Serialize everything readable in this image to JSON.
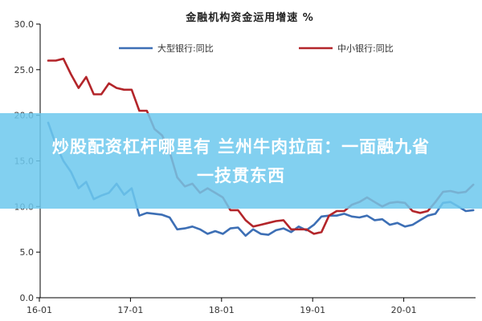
{
  "chart_data": {
    "type": "line",
    "title": "金融机构资金运用增速 %",
    "ylim": [
      0,
      30
    ],
    "yticks": [
      "0.0",
      "5.0",
      "10.0",
      "15.0",
      "20.0",
      "25.0",
      "30.0"
    ],
    "xlim": [
      0,
      57
    ],
    "xticks": [
      {
        "label": "16-01",
        "at": 0
      },
      {
        "label": "17-01",
        "at": 12
      },
      {
        "label": "18-01",
        "at": 24
      },
      {
        "label": "19-01",
        "at": 36
      },
      {
        "label": "20-01",
        "at": 48
      }
    ],
    "legend": "top",
    "grid": false,
    "series": [
      {
        "name": "大型银行:同比",
        "color": "#3d6fb5",
        "values": [
          19.2,
          16.8,
          15.0,
          13.8,
          12.0,
          12.7,
          10.8,
          11.2,
          11.5,
          12.5,
          11.3,
          12.0,
          9.0,
          9.3,
          9.2,
          9.1,
          8.8,
          7.5,
          7.6,
          7.8,
          7.5,
          7.0,
          7.3,
          7.0,
          7.6,
          7.7,
          6.8,
          7.5,
          7.0,
          6.9,
          7.4,
          7.6,
          7.2,
          7.8,
          7.4,
          8.0,
          8.9,
          9.0,
          9.0,
          9.2,
          8.9,
          8.8,
          9.0,
          8.5,
          8.6,
          8.0,
          8.2,
          7.8,
          8.0,
          8.5,
          9.0,
          9.2,
          10.4,
          10.5,
          10.0,
          9.5,
          9.6
        ]
      },
      {
        "name": "中小银行:同比",
        "color": "#b3252a",
        "values": [
          26.0,
          26.0,
          26.2,
          24.5,
          23.0,
          24.2,
          22.3,
          22.3,
          23.5,
          23.0,
          22.8,
          22.8,
          20.5,
          20.5,
          18.5,
          17.8,
          16.0,
          13.2,
          12.2,
          12.5,
          11.5,
          12.0,
          11.5,
          11.0,
          9.6,
          9.6,
          8.5,
          7.8,
          8.0,
          8.2,
          8.4,
          8.5,
          7.5,
          7.5,
          7.5,
          7.0,
          7.2,
          9.0,
          9.5,
          9.5,
          10.2,
          10.5,
          11.0,
          10.5,
          10.0,
          10.4,
          10.5,
          10.4,
          9.5,
          9.3,
          9.5,
          10.5,
          11.6,
          11.7,
          11.5,
          11.6,
          12.4
        ]
      }
    ]
  },
  "banner": {
    "line1": "炒股配资杠杆哪里有 兰州牛肉拉面：一面融九省",
    "line2": "一技贯东西"
  }
}
